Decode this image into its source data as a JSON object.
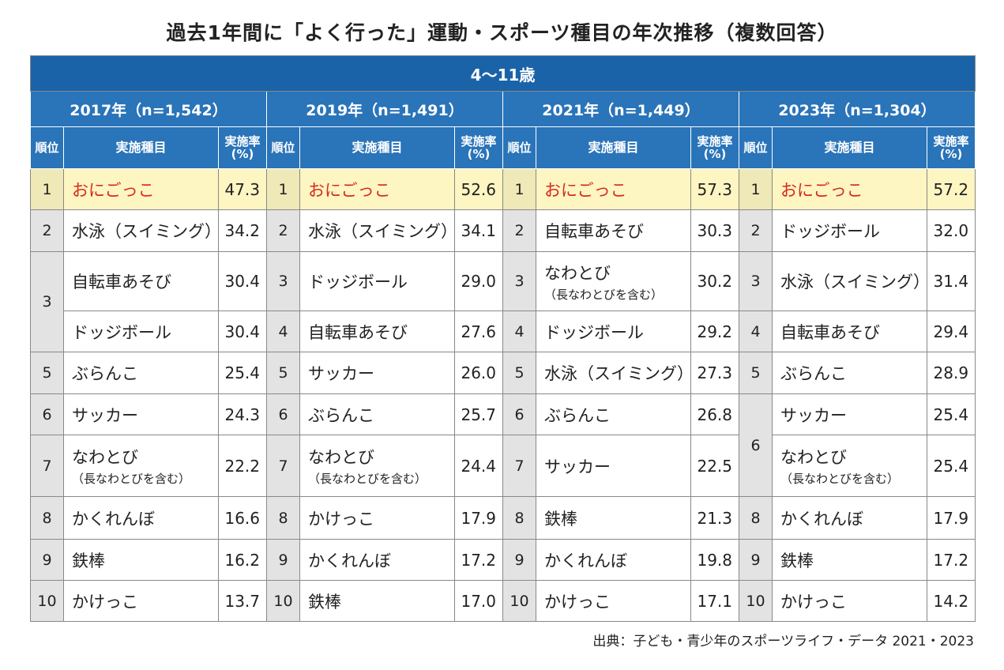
{
  "title": "過去1年間に「よく行った」運動・スポーツ種目の年次推移（複数回答）",
  "table": {
    "group": "4〜11歳",
    "columns": [
      "順位",
      "実施種目",
      "実施率(%)"
    ],
    "years": [
      {
        "label": "2017年（n=1,542）",
        "rows": [
          {
            "rank": "1",
            "name": "おにごっこ",
            "rate": "47.3"
          },
          {
            "rank": "2",
            "name": "水泳（スイミング）",
            "rate": "34.2"
          },
          {
            "rank": "3",
            "name": "自転車あそび",
            "rate": "30.4"
          },
          {
            "rank": null,
            "name": "ドッジボール",
            "rate": "30.4"
          },
          {
            "rank": "5",
            "name": "ぶらんこ",
            "rate": "25.4"
          },
          {
            "rank": "6",
            "name": "サッカー",
            "rate": "24.3"
          },
          {
            "rank": "7",
            "name": "なわとび",
            "note": "（長なわとびを含む）",
            "rate": "22.2"
          },
          {
            "rank": "8",
            "name": "かくれんぼ",
            "rate": "16.6"
          },
          {
            "rank": "9",
            "name": "鉄棒",
            "rate": "16.2"
          },
          {
            "rank": "10",
            "name": "かけっこ",
            "rate": "13.7"
          }
        ]
      },
      {
        "label": "2019年（n=1,491）",
        "rows": [
          {
            "rank": "1",
            "name": "おにごっこ",
            "rate": "52.6"
          },
          {
            "rank": "2",
            "name": "水泳（スイミング）",
            "rate": "34.1"
          },
          {
            "rank": "3",
            "name": "ドッジボール",
            "rate": "29.0"
          },
          {
            "rank": "4",
            "name": "自転車あそび",
            "rate": "27.6"
          },
          {
            "rank": "5",
            "name": "サッカー",
            "rate": "26.0"
          },
          {
            "rank": "6",
            "name": "ぶらんこ",
            "rate": "25.7"
          },
          {
            "rank": "7",
            "name": "なわとび",
            "note": "（長なわとびを含む）",
            "rate": "24.4"
          },
          {
            "rank": "8",
            "name": "かけっこ",
            "rate": "17.9"
          },
          {
            "rank": "9",
            "name": "かくれんぼ",
            "rate": "17.2"
          },
          {
            "rank": "10",
            "name": "鉄棒",
            "rate": "17.0"
          }
        ]
      },
      {
        "label": "2021年（n=1,449）",
        "rows": [
          {
            "rank": "1",
            "name": "おにごっこ",
            "rate": "57.3"
          },
          {
            "rank": "2",
            "name": "自転車あそび",
            "rate": "30.3"
          },
          {
            "rank": "3",
            "name": "なわとび",
            "note": "（長なわとびを含む）",
            "rate": "30.2"
          },
          {
            "rank": "4",
            "name": "ドッジボール",
            "rate": "29.2"
          },
          {
            "rank": "5",
            "name": "水泳（スイミング）",
            "rate": "27.3"
          },
          {
            "rank": "6",
            "name": "ぶらんこ",
            "rate": "26.8"
          },
          {
            "rank": "7",
            "name": "サッカー",
            "rate": "22.5"
          },
          {
            "rank": "8",
            "name": "鉄棒",
            "rate": "21.3"
          },
          {
            "rank": "9",
            "name": "かくれんぼ",
            "rate": "19.8"
          },
          {
            "rank": "10",
            "name": "かけっこ",
            "rate": "17.1"
          }
        ]
      },
      {
        "label": "2023年（n=1,304）",
        "rows": [
          {
            "rank": "1",
            "name": "おにごっこ",
            "rate": "57.2"
          },
          {
            "rank": "2",
            "name": "ドッジボール",
            "rate": "32.0"
          },
          {
            "rank": "3",
            "name": "水泳（スイミング）",
            "rate": "31.4"
          },
          {
            "rank": "4",
            "name": "自転車あそび",
            "rate": "29.4"
          },
          {
            "rank": "5",
            "name": "ぶらんこ",
            "rate": "28.9"
          },
          {
            "rank": "6",
            "name": "サッカー",
            "rate": "25.4"
          },
          {
            "rank": null,
            "name": "なわとび",
            "note": "（長なわとびを含む）",
            "rate": "25.4"
          },
          {
            "rank": "8",
            "name": "かくれんぼ",
            "rate": "17.9"
          },
          {
            "rank": "9",
            "name": "鉄棒",
            "rate": "17.2"
          },
          {
            "rank": "10",
            "name": "かけっこ",
            "rate": "14.2"
          }
        ]
      }
    ]
  },
  "source": "出典：子ども・青少年のスポーツライフ・データ 2021・2023"
}
